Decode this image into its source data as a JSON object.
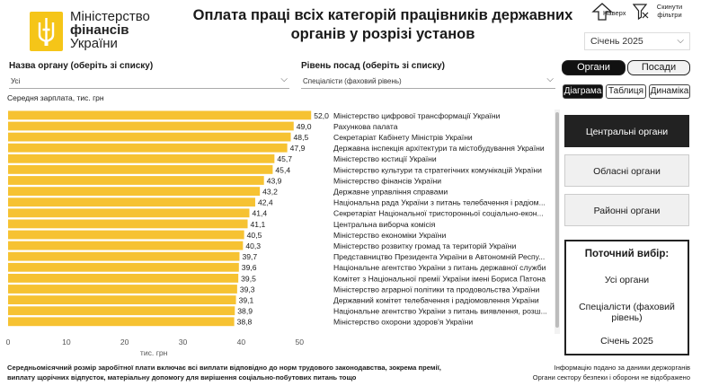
{
  "logo": {
    "line1": "Міністерство",
    "line2": "фінансів",
    "line3": "України"
  },
  "header": {
    "title": "Оплата праці всіх категорій працівників державних органів у розрізі установ"
  },
  "top_buttons": {
    "up_label": "Наверх",
    "reset_label": "Скинути фільтри"
  },
  "period": {
    "selected": "Січень 2025"
  },
  "filters": {
    "org_label": "Назва органу (оберіть зі списку)",
    "org_value": "Усі",
    "pos_label": "Рівень посад (оберіть зі списку)",
    "pos_value": "Спеціалісти (фаховий рівень)"
  },
  "toggles": {
    "organs": "Органи",
    "positions": "Посади"
  },
  "view_tabs": {
    "diagram": "Діаграма",
    "table": "Таблиця",
    "dynamics": "Динаміка"
  },
  "levels": [
    "Центральні органи",
    "Обласні органи",
    "Районні органи"
  ],
  "selection": {
    "title": "Поточний вибір:",
    "org": "Усі органи",
    "pos": "Спеціалісти (фаховий рівень)",
    "period": "Січень 2025"
  },
  "chart_data": {
    "type": "bar",
    "orientation": "horizontal",
    "title": "Середня зарплата, тис. грн",
    "xlabel": "тис. грн",
    "xlim": [
      0,
      52
    ],
    "xticks": [
      0,
      10,
      20,
      30,
      40,
      50
    ],
    "bar_color": "#f6c232",
    "categories": [
      "Міністерство цифрової трансформації України",
      "Рахункова палата",
      "Секретаріат Кабінету Міністрів України",
      "Державна інспекція архітектури та містобудування України",
      "Міністерство юстиції України",
      "Міністерство культури та стратегічних комунікацій України",
      "Міністерство фінансів України",
      "Державне управління справами",
      "Національна рада України з питань телебачення і радіом...",
      "Секретаріат Національної тристоронньої соціально-екон...",
      "Центральна виборча комісія",
      "Міністерство економіки України",
      "Міністерство розвитку громад та територій України",
      "Представництво Президента України в Автономній Респу...",
      "Національне агентство України з питань державної служби",
      "Комітет з Національної премії України імені Бориса Патона",
      "Міністерство аграрної політики та продовольства України",
      "Державний комітет телебачення і радіомовлення України",
      "Національне агентство України з питань виявлення, розш...",
      "Міністерство охорони здоров'я України"
    ],
    "values": [
      52.0,
      49.0,
      48.5,
      47.9,
      45.7,
      45.4,
      43.9,
      43.2,
      42.4,
      41.4,
      41.1,
      40.5,
      40.3,
      39.7,
      39.6,
      39.5,
      39.3,
      39.1,
      38.9,
      38.8
    ],
    "value_labels": [
      "52,0",
      "49,0",
      "48,5",
      "47,9",
      "45,7",
      "45,4",
      "43,9",
      "43,2",
      "42,4",
      "41,4",
      "41,1",
      "40,5",
      "40,3",
      "39,7",
      "39,6",
      "39,5",
      "39,3",
      "39,1",
      "38,9",
      "38,8"
    ]
  },
  "footer": {
    "left1": "Середньомісячний розмір заробітної плати включає всі виплати відповідно до норм трудового законодавства, зокрема премії,",
    "left2": "виплату щорічних відпусток, матеріальну допомогу для вирішення соціально-побутових питань тощо",
    "right1": "Інформацію подано за даними держорганів",
    "right2": "Органи сектору безпеки і оборони не відображено"
  }
}
